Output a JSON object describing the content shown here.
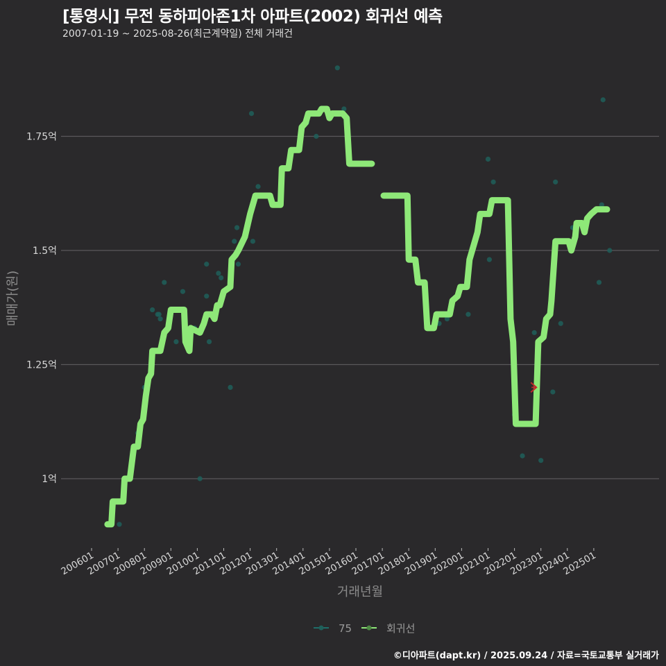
{
  "header": {
    "title": "[통영시] 무전 동하피아존1차 아파트(2002) 회귀선 예측",
    "subtitle": "2007-01-19 ~ 2025-08-26(최근계약일) 전체 거래건"
  },
  "axes": {
    "ylabel": "매매가(원)",
    "xlabel": "거래년월",
    "yticks": [
      "1억",
      "1.25억",
      "1.5억",
      "1.75억"
    ],
    "xticks": [
      "200601",
      "200701",
      "200801",
      "200901",
      "201001",
      "201101",
      "201201",
      "201301",
      "201401",
      "201501",
      "201601",
      "201701",
      "201801",
      "201901",
      "202001",
      "202101",
      "202201",
      "202301",
      "202401",
      "202501"
    ]
  },
  "legend": {
    "items": [
      {
        "label": "75",
        "color": "#1f6e6a"
      },
      {
        "label": "회귀선",
        "color": "#8ee878"
      }
    ]
  },
  "footer": {
    "credit": "©디아파트(dapt.kr) / 2025.09.24 / 자료=국토교통부 실거래가"
  },
  "colors": {
    "background": "#2a292b",
    "gridline": "#5a595b",
    "regression": "#8ee878",
    "scatter": "#1f5f5a",
    "marker": "#c0282a"
  },
  "chart_data": {
    "type": "line",
    "title": "[통영시] 무전 동하피아존1차 아파트(2002) 회귀선 예측",
    "subtitle": "2007-01-19 ~ 2025-08-26(최근계약일) 전체 거래건",
    "xlabel": "거래년월",
    "ylabel": "매매가(원)",
    "ylim": [
      0.85,
      1.92
    ],
    "y_unit": "억",
    "grid": true,
    "legend_position": "bottom",
    "series": [
      {
        "name": "회귀선",
        "type": "step-line",
        "points": [
          [
            2006.6,
            0.9
          ],
          [
            2006.75,
            0.9
          ],
          [
            2006.8,
            0.95
          ],
          [
            2007.2,
            0.95
          ],
          [
            2007.25,
            1.0
          ],
          [
            2007.45,
            1.0
          ],
          [
            2007.6,
            1.07
          ],
          [
            2007.75,
            1.07
          ],
          [
            2007.85,
            1.12
          ],
          [
            2007.95,
            1.13
          ],
          [
            2008.05,
            1.18
          ],
          [
            2008.15,
            1.22
          ],
          [
            2008.25,
            1.23
          ],
          [
            2008.3,
            1.28
          ],
          [
            2008.6,
            1.28
          ],
          [
            2008.75,
            1.32
          ],
          [
            2008.9,
            1.33
          ],
          [
            2009.0,
            1.37
          ],
          [
            2009.4,
            1.37
          ],
          [
            2009.5,
            1.37
          ],
          [
            2009.55,
            1.3
          ],
          [
            2009.7,
            1.28
          ],
          [
            2009.75,
            1.33
          ],
          [
            2010.1,
            1.32
          ],
          [
            2010.25,
            1.34
          ],
          [
            2010.35,
            1.36
          ],
          [
            2010.55,
            1.36
          ],
          [
            2010.65,
            1.35
          ],
          [
            2010.75,
            1.38
          ],
          [
            2010.85,
            1.38
          ],
          [
            2011.0,
            1.41
          ],
          [
            2011.25,
            1.42
          ],
          [
            2011.3,
            1.48
          ],
          [
            2011.45,
            1.49
          ],
          [
            2011.55,
            1.5
          ],
          [
            2011.8,
            1.53
          ],
          [
            2012.0,
            1.58
          ],
          [
            2012.2,
            1.62
          ],
          [
            2012.45,
            1.62
          ],
          [
            2012.6,
            1.62
          ],
          [
            2012.75,
            1.62
          ],
          [
            2012.85,
            1.6
          ],
          [
            2013.15,
            1.6
          ],
          [
            2013.2,
            1.68
          ],
          [
            2013.45,
            1.68
          ],
          [
            2013.55,
            1.72
          ],
          [
            2013.85,
            1.72
          ],
          [
            2013.95,
            1.77
          ],
          [
            2014.1,
            1.78
          ],
          [
            2014.2,
            1.8
          ],
          [
            2014.6,
            1.8
          ],
          [
            2014.7,
            1.81
          ],
          [
            2014.9,
            1.81
          ],
          [
            2015.0,
            1.79
          ],
          [
            2015.1,
            1.8
          ],
          [
            2015.5,
            1.8
          ],
          [
            2015.65,
            1.79
          ],
          [
            2015.75,
            1.69
          ],
          [
            2016.6,
            1.69
          ]
        ]
      },
      {
        "name": "회귀선",
        "type": "step-line",
        "points": [
          [
            2017.05,
            1.62
          ],
          [
            2017.95,
            1.62
          ],
          [
            2018.0,
            1.48
          ],
          [
            2018.25,
            1.48
          ],
          [
            2018.35,
            1.43
          ],
          [
            2018.6,
            1.43
          ],
          [
            2018.7,
            1.33
          ],
          [
            2018.95,
            1.33
          ],
          [
            2019.05,
            1.36
          ],
          [
            2019.55,
            1.36
          ],
          [
            2019.65,
            1.39
          ],
          [
            2019.85,
            1.4
          ],
          [
            2019.95,
            1.42
          ],
          [
            2020.2,
            1.42
          ],
          [
            2020.3,
            1.48
          ],
          [
            2020.5,
            1.52
          ],
          [
            2020.6,
            1.54
          ],
          [
            2020.7,
            1.58
          ],
          [
            2021.05,
            1.58
          ],
          [
            2021.15,
            1.61
          ],
          [
            2021.75,
            1.61
          ],
          [
            2021.85,
            1.35
          ],
          [
            2021.95,
            1.3
          ],
          [
            2022.05,
            1.12
          ],
          [
            2022.8,
            1.12
          ],
          [
            2022.9,
            1.3
          ],
          [
            2023.1,
            1.31
          ],
          [
            2023.2,
            1.35
          ],
          [
            2023.35,
            1.36
          ],
          [
            2023.4,
            1.39
          ],
          [
            2023.55,
            1.52
          ],
          [
            2024.05,
            1.52
          ],
          [
            2024.15,
            1.5
          ],
          [
            2024.3,
            1.53
          ],
          [
            2024.35,
            1.56
          ],
          [
            2024.55,
            1.56
          ],
          [
            2024.65,
            1.54
          ],
          [
            2024.75,
            1.57
          ],
          [
            2024.9,
            1.58
          ],
          [
            2025.1,
            1.59
          ],
          [
            2025.5,
            1.59
          ]
        ]
      },
      {
        "name": "75",
        "type": "scatter",
        "points": [
          [
            2007.05,
            0.9
          ],
          [
            2007.75,
            1.1
          ],
          [
            2008.0,
            1.2
          ],
          [
            2008.05,
            1.17
          ],
          [
            2008.3,
            1.37
          ],
          [
            2008.5,
            1.36
          ],
          [
            2008.55,
            1.36
          ],
          [
            2008.6,
            1.35
          ],
          [
            2008.75,
            1.43
          ],
          [
            2009.2,
            1.3
          ],
          [
            2009.45,
            1.41
          ],
          [
            2009.9,
            1.33
          ],
          [
            2010.1,
            1.0
          ],
          [
            2010.35,
            1.47
          ],
          [
            2010.35,
            1.4
          ],
          [
            2010.45,
            1.3
          ],
          [
            2010.8,
            1.45
          ],
          [
            2010.9,
            1.44
          ],
          [
            2010.95,
            1.4
          ],
          [
            2011.25,
            1.2
          ],
          [
            2011.4,
            1.52
          ],
          [
            2011.5,
            1.55
          ],
          [
            2011.55,
            1.47
          ],
          [
            2012.1,
            1.52
          ],
          [
            2012.05,
            1.8
          ],
          [
            2012.3,
            1.64
          ],
          [
            2014.5,
            1.75
          ],
          [
            2014.15,
            1.78
          ],
          [
            2015.3,
            1.9
          ],
          [
            2015.55,
            1.81
          ],
          [
            2019.15,
            1.34
          ],
          [
            2019.45,
            1.35
          ],
          [
            2020.25,
            1.36
          ],
          [
            2021.0,
            1.7
          ],
          [
            2021.05,
            1.48
          ],
          [
            2021.2,
            1.65
          ],
          [
            2022.0,
            1.14
          ],
          [
            2022.3,
            1.05
          ],
          [
            2022.75,
            1.32
          ],
          [
            2023.0,
            1.04
          ],
          [
            2023.45,
            1.19
          ],
          [
            2023.55,
            1.65
          ],
          [
            2023.75,
            1.34
          ],
          [
            2024.2,
            1.55
          ],
          [
            2024.25,
            1.55
          ],
          [
            2024.6,
            1.55
          ],
          [
            2025.2,
            1.43
          ],
          [
            2025.3,
            1.6
          ],
          [
            2025.35,
            1.83
          ],
          [
            2025.6,
            1.5
          ]
        ]
      },
      {
        "name": "예측",
        "type": "marker",
        "points": [
          [
            2022.75,
            1.2
          ]
        ]
      }
    ]
  }
}
